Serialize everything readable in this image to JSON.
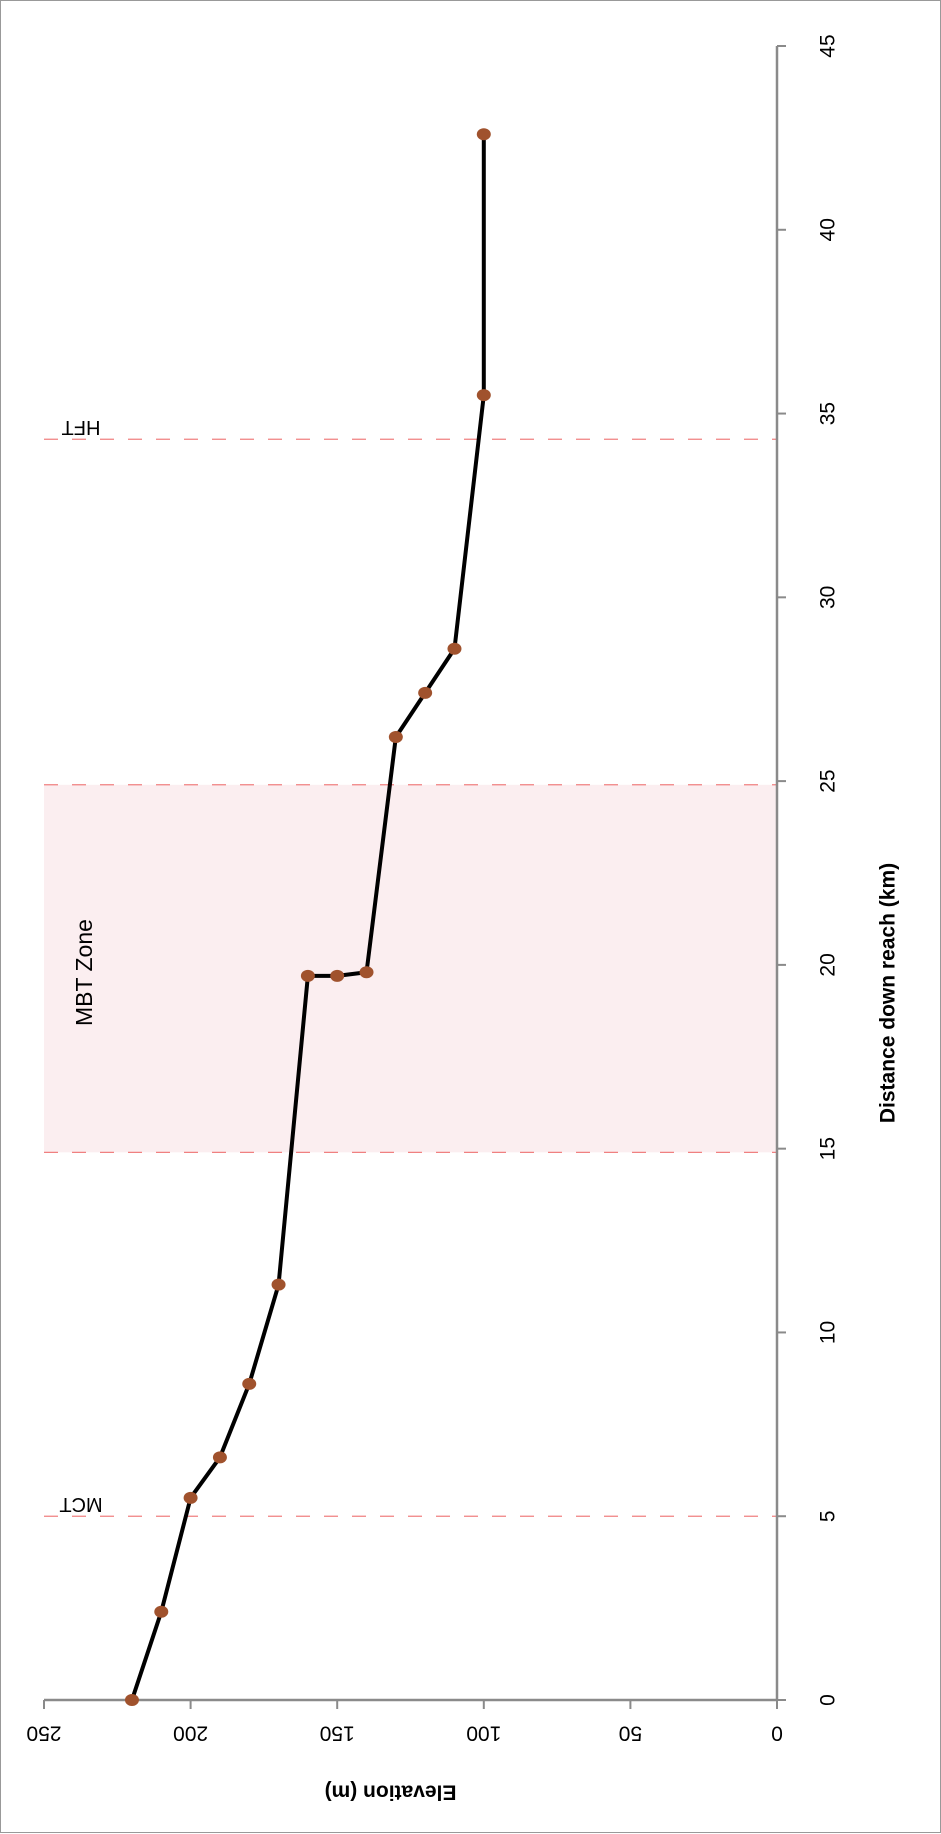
{
  "chart_data": {
    "type": "line",
    "orientation": "rotated-90-clockwise",
    "xlabel": "Distance down reach (km)",
    "ylabel": "Elevation (m)",
    "xlim": [
      0,
      45
    ],
    "ylim": [
      0,
      250
    ],
    "x_ticks": [
      0,
      5,
      10,
      15,
      20,
      25,
      30,
      35,
      40,
      45
    ],
    "y_ticks": [
      0,
      50,
      100,
      150,
      200,
      250
    ],
    "grid": false,
    "legend": "none",
    "series": [
      {
        "line_color": "#000000",
        "marker_color": "#A0522D",
        "points": [
          {
            "x": 0,
            "y": 220
          },
          {
            "x": 2.4,
            "y": 210
          },
          {
            "x": 5.5,
            "y": 200
          },
          {
            "x": 6.6,
            "y": 190
          },
          {
            "x": 8.6,
            "y": 180
          },
          {
            "x": 11.3,
            "y": 170
          },
          {
            "x": 19.7,
            "y": 160
          },
          {
            "x": 19.7,
            "y": 150
          },
          {
            "x": 19.8,
            "y": 140
          },
          {
            "x": 26.2,
            "y": 130
          },
          {
            "x": 27.4,
            "y": 120
          },
          {
            "x": 28.6,
            "y": 110
          },
          {
            "x": 35.5,
            "y": 100
          },
          {
            "x": 42.6,
            "y": 100
          }
        ]
      }
    ],
    "shaded_regions": [
      {
        "label": "MBT Zone",
        "x_start": 14.9,
        "x_end": 24.9,
        "color": "#FBEEF0"
      }
    ],
    "reference_lines": [
      {
        "label": "MCT",
        "x": 5.0,
        "color": "#F08080"
      },
      {
        "x": 14.9,
        "color": "#F08080"
      },
      {
        "x": 24.9,
        "color": "#F08080"
      },
      {
        "label": "HFT",
        "x": 34.3,
        "color": "#F08080"
      }
    ]
  }
}
